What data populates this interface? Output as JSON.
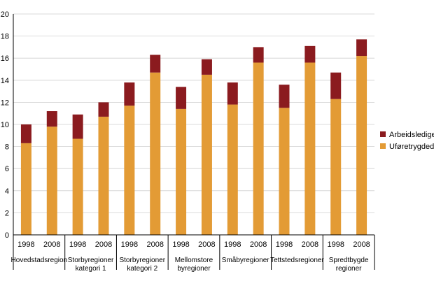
{
  "chart_data": {
    "type": "bar",
    "stacked": true,
    "categories": [
      "1998",
      "2008",
      "1998",
      "2008",
      "1998",
      "2008",
      "1998",
      "2008",
      "1998",
      "2008",
      "1998",
      "2008",
      "1998",
      "2008"
    ],
    "groups": [
      {
        "label_lines": [
          "Hovedstadsregion"
        ]
      },
      {
        "label_lines": [
          "Storbyregioner",
          "kategori 1"
        ]
      },
      {
        "label_lines": [
          "Storbyregioner",
          "kategori 2"
        ]
      },
      {
        "label_lines": [
          "Mellomstore",
          "byregioner"
        ]
      },
      {
        "label_lines": [
          "Småbyregioner"
        ]
      },
      {
        "label_lines": [
          "Tettstedsregioner"
        ]
      },
      {
        "label_lines": [
          "Spredtbygde",
          "regioner"
        ]
      }
    ],
    "series": [
      {
        "name": "Uføretrygdede",
        "color": "#e39b35",
        "values": [
          8.3,
          9.8,
          8.7,
          10.7,
          11.7,
          14.7,
          11.4,
          14.5,
          11.8,
          15.6,
          11.5,
          15.6,
          12.3,
          16.2
        ]
      },
      {
        "name": "Arbeidsledige",
        "color": "#8b1b1f",
        "values": [
          1.7,
          1.4,
          2.2,
          1.3,
          2.1,
          1.6,
          2.0,
          1.4,
          2.0,
          1.4,
          2.1,
          1.5,
          2.4,
          1.5
        ]
      }
    ],
    "ylim": [
      0,
      20
    ],
    "yticks": [
      0,
      2,
      4,
      6,
      8,
      10,
      12,
      14,
      16,
      18,
      20
    ],
    "legend": {
      "placement": "right",
      "order": [
        "Arbeidsledige",
        "Uføretrygdede"
      ]
    },
    "grid": true
  }
}
